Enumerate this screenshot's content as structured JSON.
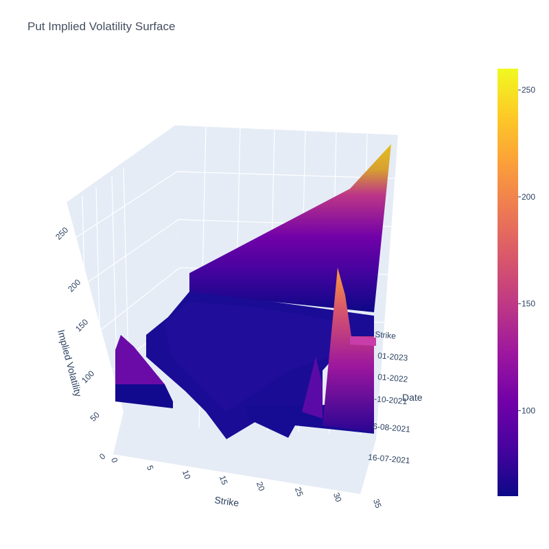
{
  "chart_data": {
    "type": "surface",
    "title": "Put Implied Volatility Surface",
    "xlabel": "Strike",
    "ylabel": "Date",
    "zlabel": "Implied Volatility",
    "x_ticks": [
      "0",
      "5",
      "10",
      "15",
      "20",
      "25",
      "30",
      "35"
    ],
    "y_ticks": [
      "16-07-2021",
      "6-08-2021",
      "-10-2021",
      "01-2022",
      "01-2023",
      "Strike"
    ],
    "z_ticks": [
      "0",
      "50",
      "100",
      "150",
      "200",
      "250"
    ],
    "colorscale": "plasma",
    "colorbar": {
      "ticks": [
        "100",
        "150",
        "200",
        "250"
      ],
      "range": [
        60,
        260
      ]
    },
    "xlim": [
      0,
      35
    ],
    "zlim": [
      0,
      260
    ],
    "surface_rows": [
      {
        "date": "16-07-2021",
        "strikes": [
          0,
          3,
          6,
          9,
          12,
          15,
          18,
          21,
          24,
          27,
          30,
          33
        ],
        "iv": [
          70,
          95,
          60,
          52,
          45,
          20,
          25,
          35,
          30,
          75,
          200,
          130
        ]
      },
      {
        "date": "6-08-2021",
        "strikes": [
          0,
          3,
          6,
          9,
          12,
          15,
          18,
          21,
          24,
          27,
          30,
          33
        ],
        "iv": [
          75,
          70,
          65,
          60,
          55,
          50,
          48,
          50,
          52,
          60,
          90,
          100
        ]
      },
      {
        "date": "-10-2021",
        "strikes": [
          0,
          3,
          6,
          9,
          12,
          15,
          18,
          21,
          24,
          27,
          30,
          33
        ],
        "iv": [
          72,
          68,
          64,
          60,
          58,
          56,
          55,
          56,
          58,
          62,
          70,
          78
        ]
      },
      {
        "date": "01-2022",
        "strikes": [
          0,
          3,
          6,
          9,
          12,
          15,
          18,
          21,
          24,
          27,
          30,
          33
        ],
        "iv": [
          70,
          66,
          63,
          61,
          60,
          59,
          58,
          59,
          60,
          62,
          65,
          70
        ]
      },
      {
        "date": "01-2023",
        "strikes": [
          0,
          3,
          6,
          9,
          12,
          15,
          18,
          21,
          24,
          27,
          30,
          33
        ],
        "iv": [
          68,
          70,
          75,
          85,
          100,
          120,
          140,
          160,
          180,
          200,
          230,
          260
        ]
      }
    ]
  }
}
